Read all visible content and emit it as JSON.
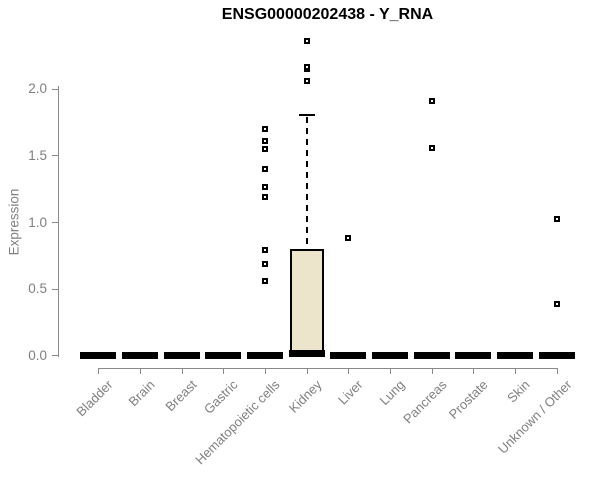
{
  "title": "ENSG00000202438 - Y_RNA",
  "chart_data": {
    "type": "boxplot",
    "title": "ENSG00000202438 - Y_RNA",
    "xlabel": "",
    "ylabel": "Expression",
    "ylim": [
      0,
      2.45
    ],
    "grid": false,
    "legend": null,
    "ytick_values": [
      0.0,
      0.5,
      1.0,
      1.5,
      2.0
    ],
    "ytick_labels": [
      "0.0",
      "0.5",
      "1.0",
      "1.5",
      "2.0"
    ],
    "categories": [
      "Bladder",
      "Brain",
      "Breast",
      "Gastric",
      "Hematopoietic cells",
      "Kidney",
      "Liver",
      "Lung",
      "Pancreas",
      "Prostate",
      "Skin",
      "Unknown / Other"
    ],
    "boxes": [
      {
        "category": "Bladder",
        "q1": 0,
        "median": 0,
        "q3": 0,
        "whisker_low": 0,
        "whisker_high": 0,
        "outliers": []
      },
      {
        "category": "Brain",
        "q1": 0,
        "median": 0,
        "q3": 0,
        "whisker_low": 0,
        "whisker_high": 0,
        "outliers": []
      },
      {
        "category": "Breast",
        "q1": 0,
        "median": 0,
        "q3": 0,
        "whisker_low": 0,
        "whisker_high": 0,
        "outliers": []
      },
      {
        "category": "Gastric",
        "q1": 0,
        "median": 0,
        "q3": 0,
        "whisker_low": 0,
        "whisker_high": 0,
        "outliers": []
      },
      {
        "category": "Hematopoietic cells",
        "q1": 0,
        "median": 0,
        "q3": 0,
        "whisker_low": 0,
        "whisker_high": 0,
        "outliers": [
          0.56,
          0.69,
          0.79,
          1.19,
          1.27,
          1.4,
          1.55,
          1.61,
          1.7
        ]
      },
      {
        "category": "Kidney",
        "q1": 0.01,
        "median": 0.02,
        "q3": 0.8,
        "whisker_low": 0,
        "whisker_high": 1.81,
        "outliers": [
          2.06,
          2.15,
          2.17,
          2.36
        ]
      },
      {
        "category": "Liver",
        "q1": 0,
        "median": 0,
        "q3": 0,
        "whisker_low": 0,
        "whisker_high": 0,
        "outliers": [
          0.88
        ]
      },
      {
        "category": "Lung",
        "q1": 0,
        "median": 0,
        "q3": 0,
        "whisker_low": 0,
        "whisker_high": 0,
        "outliers": []
      },
      {
        "category": "Pancreas",
        "q1": 0,
        "median": 0,
        "q3": 0,
        "whisker_low": 0,
        "whisker_high": 0,
        "outliers": [
          1.56,
          1.91
        ]
      },
      {
        "category": "Prostate",
        "q1": 0,
        "median": 0,
        "q3": 0,
        "whisker_low": 0,
        "whisker_high": 0,
        "outliers": []
      },
      {
        "category": "Skin",
        "q1": 0,
        "median": 0,
        "q3": 0,
        "whisker_low": 0,
        "whisker_high": 0,
        "outliers": []
      },
      {
        "category": "Unknown / Other",
        "q1": 0,
        "median": 0,
        "q3": 0,
        "whisker_low": 0,
        "whisker_high": 0,
        "outliers": [
          0.39,
          1.03
        ]
      }
    ],
    "colors": {
      "box_fill": "#ece5cb",
      "box_border": "#000000",
      "median": "#000000",
      "outlier_border": "#000000",
      "outlier_fill": "#ffffff",
      "axis_line": "#8a8a8a",
      "tick_label": "#7f7f7f",
      "title": "#000000",
      "background": "#ffffff"
    }
  }
}
